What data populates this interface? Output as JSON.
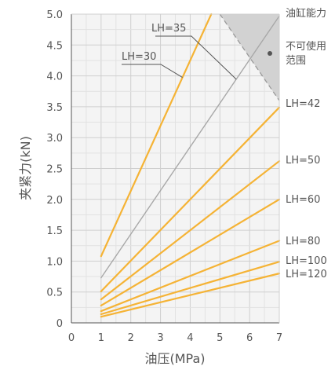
{
  "chart_data": {
    "type": "line",
    "xlabel": "油压(MPa)",
    "ylabel": "夹紧力(kN)",
    "xlim": [
      0,
      7
    ],
    "ylim": [
      0,
      5.0
    ],
    "x_ticks": [
      "0",
      "1",
      "2",
      "3",
      "4",
      "5",
      "6",
      "7"
    ],
    "y_ticks": [
      "0",
      "0.5",
      "1.0",
      "1.5",
      "2.0",
      "2.5",
      "3.0",
      "3.5",
      "4.0",
      "4.5",
      "5.0"
    ],
    "grid": true,
    "series": [
      {
        "name": "LH=30",
        "color": "#f5b335",
        "x": [
          1,
          4.71
        ],
        "y": [
          1.08,
          5.0
        ],
        "label_side": "callout"
      },
      {
        "name": "LH=35",
        "color": "#a8a8a8",
        "x": [
          1,
          7
        ],
        "y": [
          0.73,
          4.97
        ],
        "label_side": "callout"
      },
      {
        "name": "LH=42",
        "color": "#f5b335",
        "x": [
          1,
          7
        ],
        "y": [
          0.51,
          3.49
        ],
        "label_side": "right"
      },
      {
        "name": "LH=50",
        "color": "#f5b335",
        "x": [
          1,
          7
        ],
        "y": [
          0.38,
          2.62
        ],
        "label_side": "right"
      },
      {
        "name": "LH=60",
        "color": "#f5b335",
        "x": [
          1,
          7
        ],
        "y": [
          0.28,
          2.0
        ],
        "label_side": "right"
      },
      {
        "name": "LH=80",
        "color": "#f5b335",
        "x": [
          1,
          7
        ],
        "y": [
          0.19,
          1.33
        ],
        "label_side": "right"
      },
      {
        "name": "LH=100",
        "color": "#f5b335",
        "x": [
          1,
          7
        ],
        "y": [
          0.14,
          0.99
        ],
        "label_side": "right"
      },
      {
        "name": "LH=120",
        "color": "#f5b335",
        "x": [
          1,
          7
        ],
        "y": [
          0.1,
          0.8
        ],
        "label_side": "right"
      }
    ],
    "limit_line": {
      "label": "油缸能力",
      "x": [
        5,
        7
      ],
      "y": [
        5.0,
        3.6
      ],
      "style": "dashed"
    },
    "unusable_region": {
      "label_lines": [
        "不可使用",
        "范围"
      ],
      "fill": "#d2d2d2"
    }
  }
}
